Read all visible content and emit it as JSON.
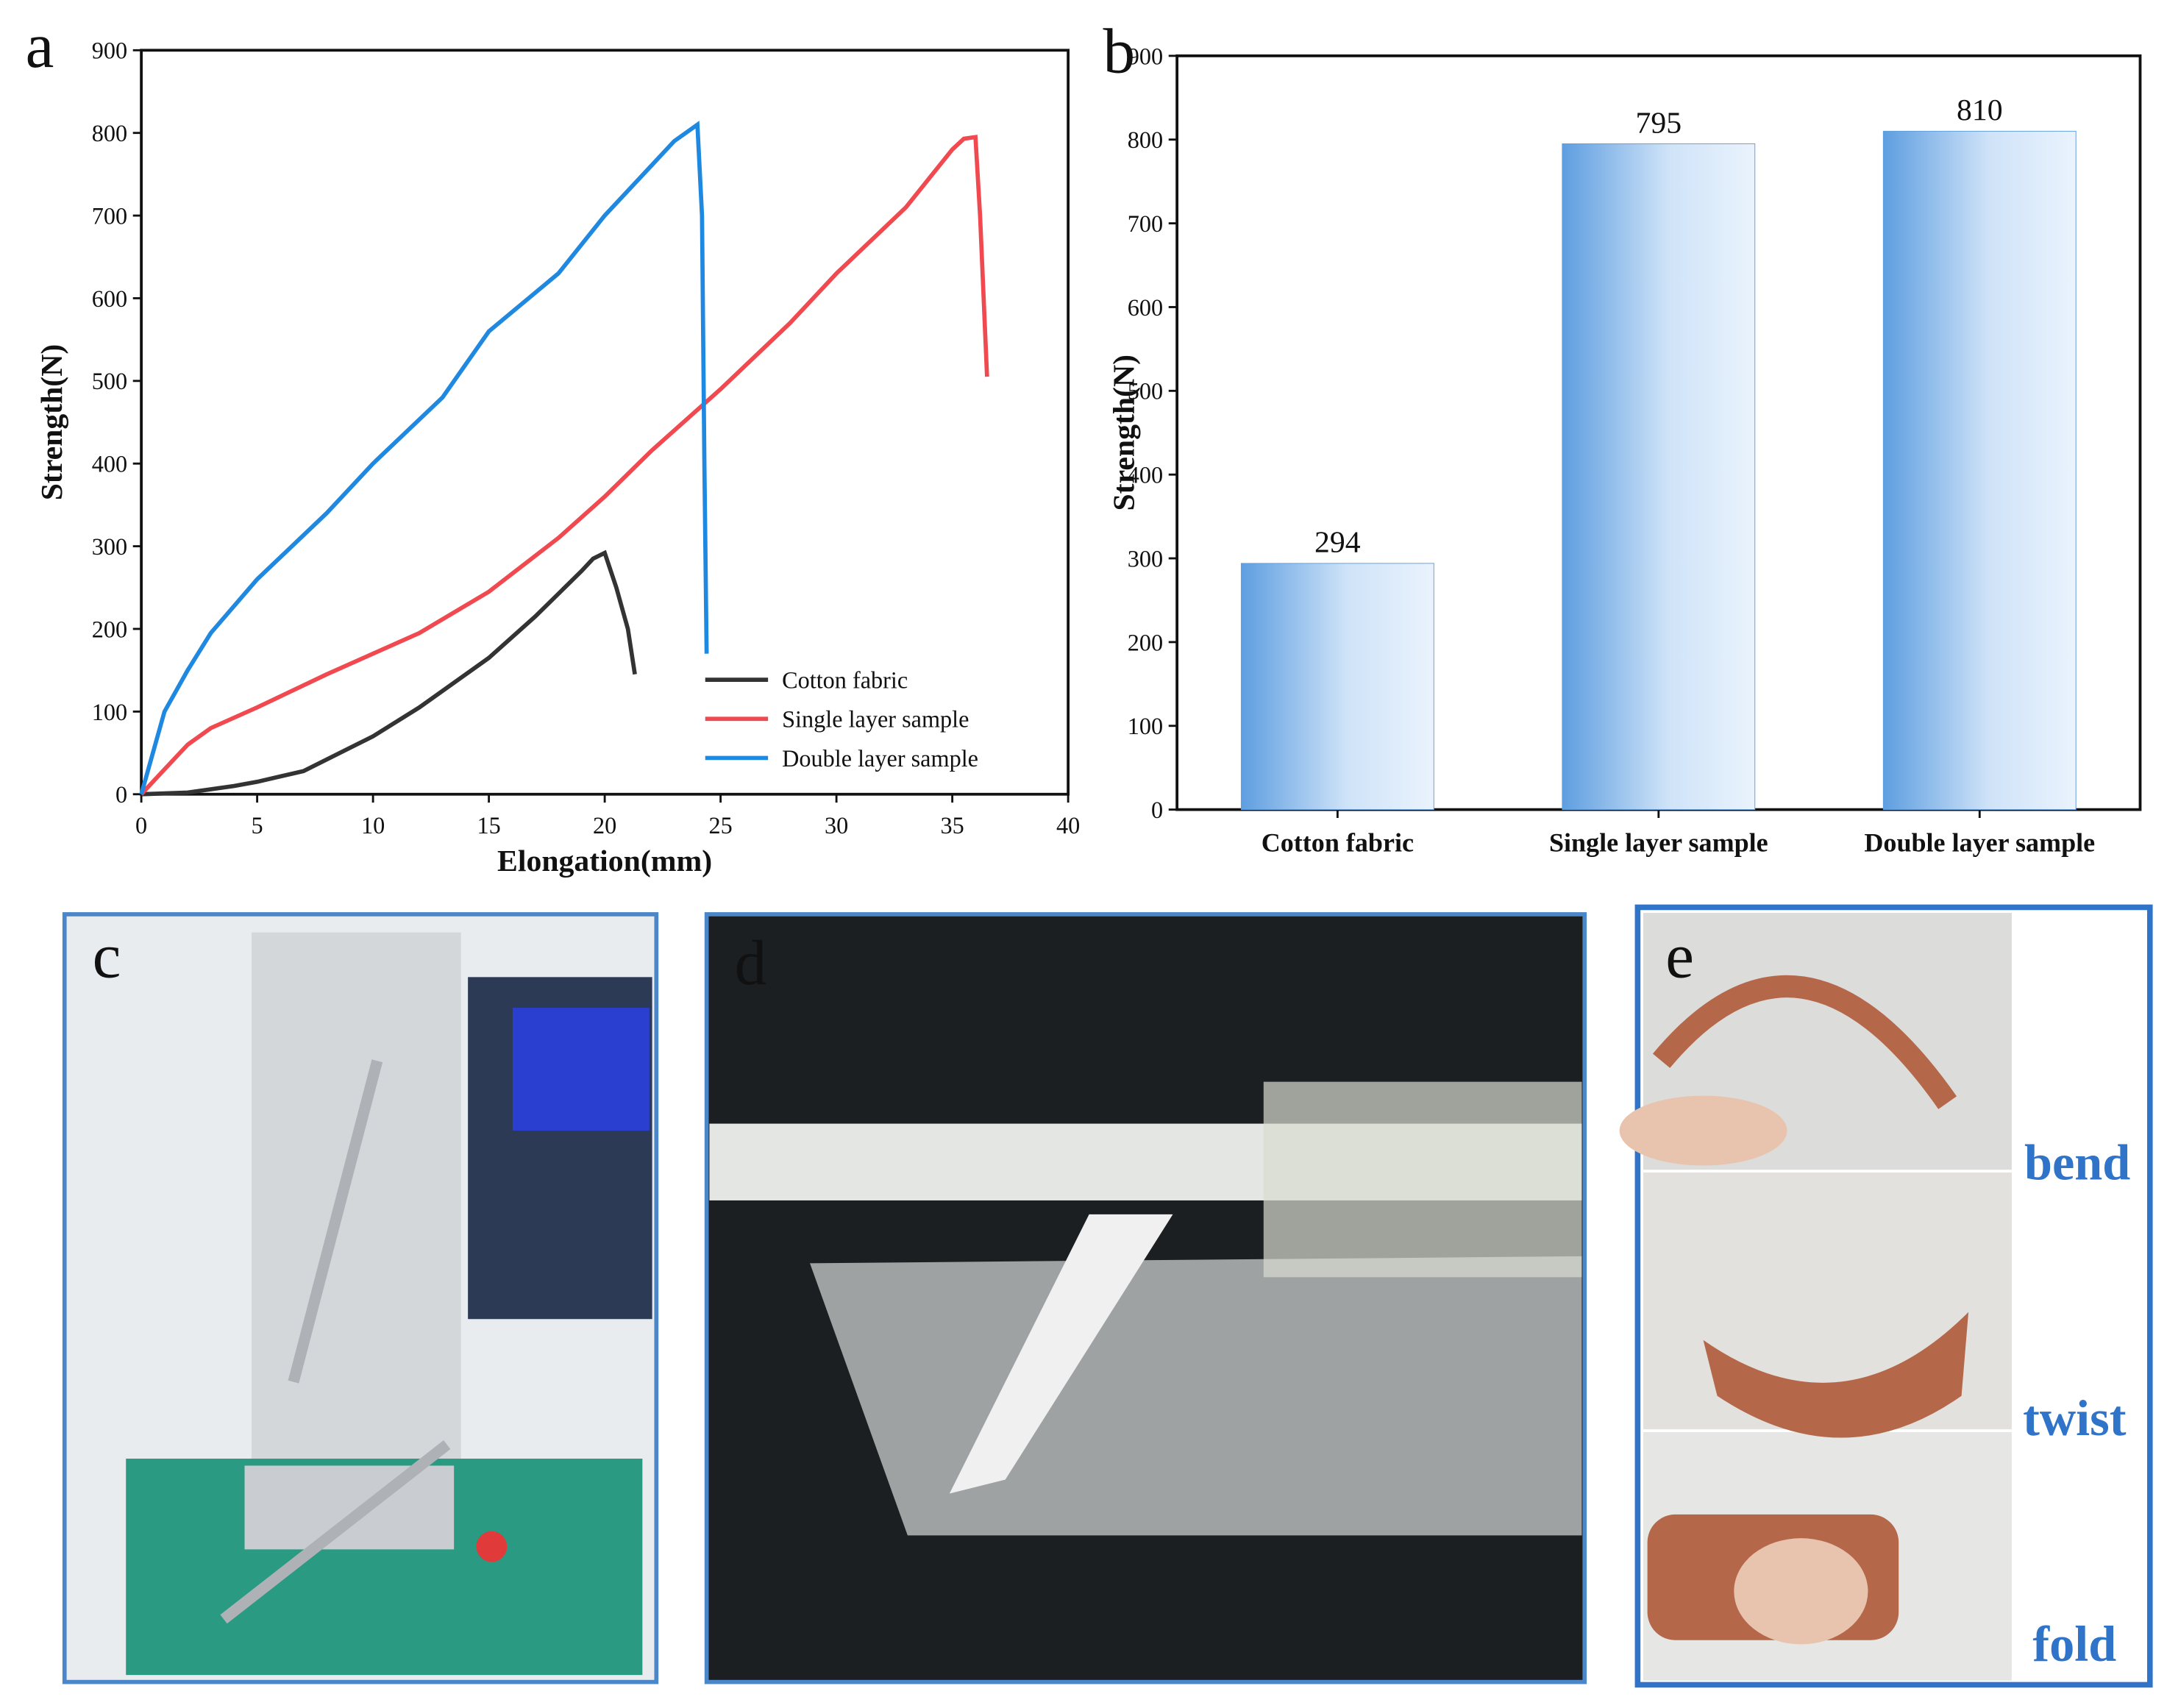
{
  "chart_data": [
    {
      "type": "line",
      "panel_label": "a",
      "xlabel": "Elongation(mm)",
      "ylabel": "Strength(N)",
      "xlim": [
        0,
        40
      ],
      "xticks": [
        0,
        5,
        10,
        15,
        20,
        25,
        30,
        35,
        40
      ],
      "ylim": [
        0,
        900
      ],
      "yticks": [
        0,
        100,
        200,
        300,
        400,
        500,
        600,
        700,
        800,
        900
      ],
      "legend": "lower right",
      "series": [
        {
          "name": "Cotton fabric",
          "color": "#333333",
          "x": [
            0,
            2,
            4,
            5,
            7,
            10,
            12,
            15,
            17,
            19,
            19.5,
            20,
            20.5,
            21,
            21.3
          ],
          "values": [
            0,
            2,
            10,
            15,
            28,
            70,
            105,
            165,
            215,
            270,
            285,
            292,
            250,
            200,
            145
          ]
        },
        {
          "name": "Single layer sample",
          "color": "#f0494f",
          "x": [
            0,
            1,
            2,
            3,
            5,
            8,
            10,
            12,
            15,
            18,
            20,
            22,
            25,
            28,
            30,
            33,
            35,
            35.5,
            36,
            36.2,
            36.5
          ],
          "values": [
            0,
            30,
            60,
            80,
            105,
            145,
            170,
            195,
            245,
            310,
            360,
            415,
            490,
            570,
            630,
            710,
            780,
            793,
            795,
            700,
            505
          ]
        },
        {
          "name": "Double layer sample",
          "color": "#1f88e0",
          "x": [
            0,
            0.5,
            1,
            2,
            3,
            5,
            8,
            10,
            13,
            15,
            18,
            20,
            22,
            23,
            24,
            24.2,
            24.3,
            24.4
          ],
          "values": [
            0,
            50,
            100,
            150,
            195,
            260,
            340,
            400,
            480,
            560,
            630,
            700,
            760,
            790,
            810,
            700,
            400,
            170
          ]
        }
      ]
    },
    {
      "type": "bar",
      "panel_label": "b",
      "ylabel": "Strength(N)",
      "categories": [
        "Cotton fabric",
        "Single layer sample",
        "Double layer sample"
      ],
      "values": [
        294,
        795,
        810
      ],
      "color": "#5e9ee0",
      "ylim": [
        0,
        900
      ],
      "yticks": [
        0,
        100,
        200,
        300,
        400,
        500,
        600,
        700,
        800,
        900
      ]
    }
  ],
  "photos": [
    {
      "label": "c"
    },
    {
      "label": "d"
    },
    {
      "label": "e",
      "captions": [
        "bend",
        "twist",
        "fold"
      ]
    }
  ]
}
